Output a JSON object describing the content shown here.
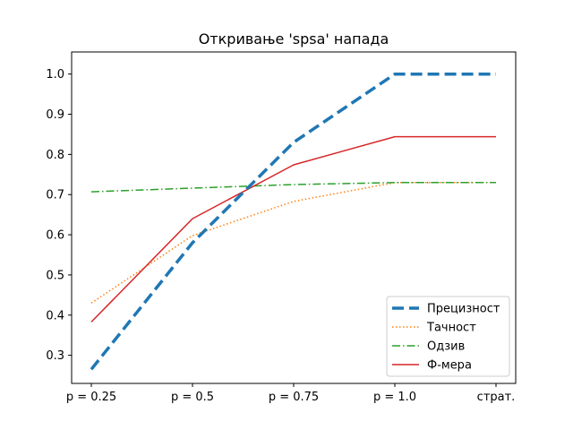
{
  "chart_data": {
    "type": "line",
    "title": "Откривање 'spsa' напада",
    "xlabel": "",
    "ylabel": "",
    "categories": [
      "p = 0.25",
      "p = 0.5",
      "p = 0.75",
      "p = 1.0",
      "страт."
    ],
    "ylim": [
      0.23,
      1.055
    ],
    "yticks": [
      "0.3",
      "0.4",
      "0.5",
      "0.6",
      "0.7",
      "0.8",
      "0.9",
      "1.0"
    ],
    "grid": false,
    "legend_position": "lower-right",
    "series": [
      {
        "name": "Прецизност",
        "values": [
          0.265,
          0.58,
          0.83,
          1.0,
          1.0
        ],
        "color": "#1f77b4",
        "style": "dashed-thick"
      },
      {
        "name": "Тачност",
        "values": [
          0.43,
          0.598,
          0.683,
          0.73,
          0.73
        ],
        "color": "#ff7f0e",
        "style": "dotted"
      },
      {
        "name": "Одзив",
        "values": [
          0.707,
          0.716,
          0.725,
          0.73,
          0.73
        ],
        "color": "#2ca02c",
        "style": "dashdot"
      },
      {
        "name": "Ф-мера",
        "values": [
          0.383,
          0.64,
          0.774,
          0.844,
          0.844
        ],
        "color": "#d62728",
        "style": "solid"
      }
    ]
  }
}
